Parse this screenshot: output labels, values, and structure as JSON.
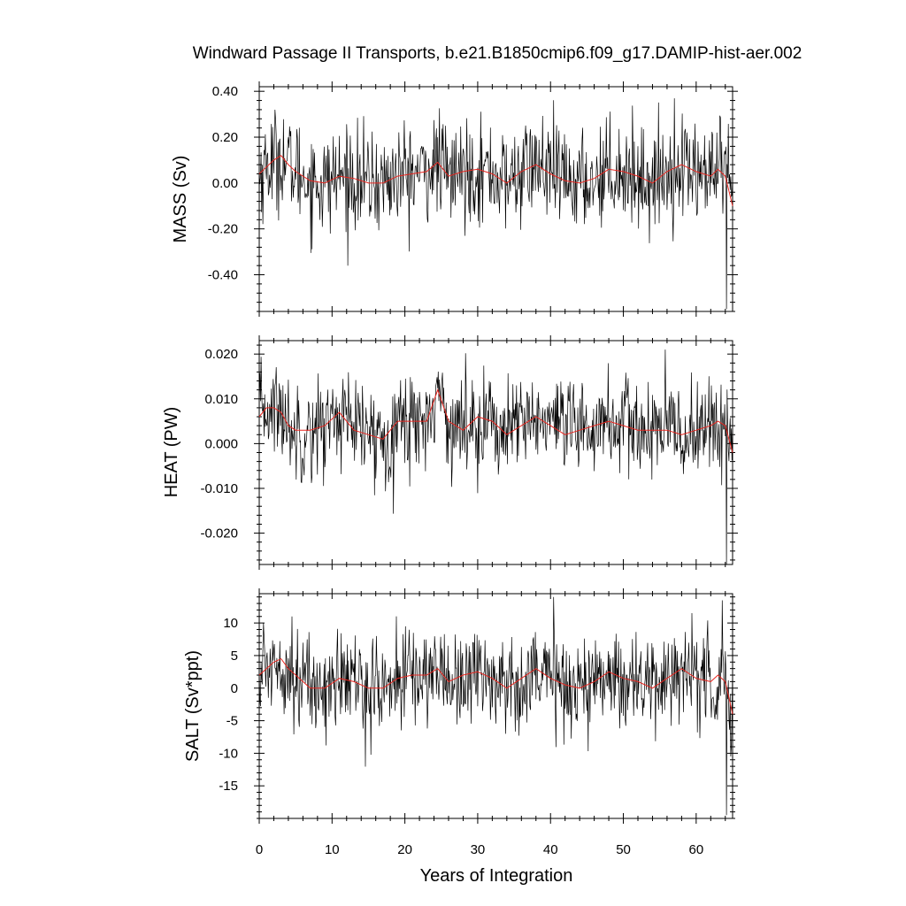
{
  "chart_data": {
    "type": "line",
    "title": "Windward Passage II Transports, b.e21.B1850cmip6.f09_g17.DAMIP-hist-aer.002",
    "xlabel": "Years of Integration",
    "xlim": [
      0,
      65
    ],
    "xticks": [
      0,
      10,
      20,
      30,
      40,
      50,
      60
    ],
    "xtick_labels": [
      "0",
      "10",
      "20",
      "30",
      "40",
      "50",
      "60"
    ],
    "x_minor_step": 2,
    "sampling": "monthly",
    "panels": [
      {
        "ylabel": "MASS (Sv)",
        "ylim": [
          -0.56,
          0.42
        ],
        "yticks": [
          0.4,
          0.2,
          0.0,
          -0.2,
          -0.4
        ],
        "ytick_labels": [
          "0.40",
          "0.20",
          "0.00",
          "-0.20",
          "-0.40"
        ],
        "y_minor_step": 0.04,
        "series": [
          {
            "role": "monthly",
            "color": "#000000",
            "stats": {
              "mean": 0.03,
              "std": 0.11,
              "min": -0.55,
              "max": 0.41
            }
          },
          {
            "role": "smoothed",
            "color": "#e8251f",
            "x": [
              0,
              1,
              2,
              3,
              4,
              5,
              7,
              9,
              11,
              13,
              15,
              17,
              19,
              21,
              23,
              24.5,
              26,
              28,
              30,
              32,
              34,
              36,
              38,
              40,
              42,
              44,
              46,
              48,
              50,
              52,
              54,
              56,
              58,
              60,
              62,
              63,
              64,
              65
            ],
            "y": [
              0.04,
              0.07,
              0.1,
              0.12,
              0.08,
              0.05,
              0.01,
              0.0,
              0.03,
              0.02,
              0.0,
              0.0,
              0.03,
              0.04,
              0.05,
              0.09,
              0.03,
              0.05,
              0.06,
              0.04,
              0.0,
              0.05,
              0.08,
              0.04,
              0.01,
              0.0,
              0.02,
              0.06,
              0.05,
              0.03,
              0.0,
              0.05,
              0.08,
              0.05,
              0.03,
              0.06,
              0.03,
              -0.1
            ]
          }
        ]
      },
      {
        "ylabel": "HEAT (PW)",
        "ylim": [
          -0.027,
          0.023
        ],
        "yticks": [
          0.02,
          0.01,
          0.0,
          -0.01,
          -0.02
        ],
        "ytick_labels": [
          "0.020",
          "0.010",
          "0.000",
          "-0.010",
          "-0.020"
        ],
        "y_minor_step": 0.002,
        "series": [
          {
            "role": "monthly",
            "color": "#000000",
            "stats": {
              "mean": 0.004,
              "std": 0.0055,
              "min": -0.027,
              "max": 0.022
            }
          },
          {
            "role": "smoothed",
            "color": "#e8251f",
            "x": [
              0,
              1,
              2,
              3,
              4,
              5,
              7,
              9,
              11,
              13,
              15,
              17,
              19,
              21,
              23,
              24.5,
              26,
              28,
              30,
              32,
              34,
              36,
              38,
              40,
              42,
              44,
              46,
              48,
              50,
              52,
              54,
              56,
              58,
              60,
              62,
              63,
              64,
              65
            ],
            "y": [
              0.006,
              0.008,
              0.008,
              0.007,
              0.004,
              0.003,
              0.003,
              0.004,
              0.007,
              0.003,
              0.002,
              0.001,
              0.005,
              0.005,
              0.005,
              0.012,
              0.005,
              0.003,
              0.006,
              0.005,
              0.002,
              0.004,
              0.006,
              0.004,
              0.002,
              0.003,
              0.004,
              0.005,
              0.004,
              0.003,
              0.003,
              0.003,
              0.002,
              0.003,
              0.004,
              0.005,
              0.004,
              -0.002
            ]
          }
        ]
      },
      {
        "ylabel": "SALT (Sv*ppt)",
        "ylim": [
          -20,
          14.5
        ],
        "yticks": [
          10,
          5,
          0,
          -5,
          -10,
          -15
        ],
        "ytick_labels": [
          "10",
          "5",
          "0",
          "-5",
          "-10",
          "-15"
        ],
        "y_minor_step": 1,
        "series": [
          {
            "role": "monthly",
            "color": "#000000",
            "stats": {
              "mean": 1.0,
              "std": 3.8,
              "min": -19.5,
              "max": 14
            }
          },
          {
            "role": "smoothed",
            "color": "#e8251f",
            "x": [
              0,
              1,
              2,
              3,
              4,
              5,
              7,
              9,
              11,
              13,
              15,
              17,
              19,
              21,
              23,
              24.5,
              26,
              28,
              30,
              32,
              34,
              36,
              38,
              40,
              42,
              44,
              46,
              48,
              50,
              52,
              54,
              56,
              58,
              60,
              62,
              63,
              64,
              65
            ],
            "y": [
              2,
              3,
              4,
              4.5,
              3,
              2,
              0,
              0,
              1.5,
              1,
              0,
              0,
              1.5,
              2,
              2,
              3,
              1,
              2,
              2.5,
              1.5,
              0,
              1.5,
              3,
              1.5,
              0.5,
              0,
              1,
              2.5,
              1.5,
              1,
              0,
              1.5,
              3,
              1.5,
              1,
              2,
              1,
              -4
            ]
          }
        ]
      }
    ]
  }
}
